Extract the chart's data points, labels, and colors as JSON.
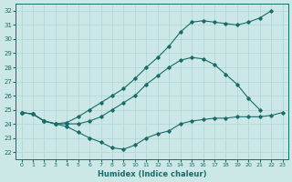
{
  "xlabel": "Humidex (Indice chaleur)",
  "xlim": [
    -0.5,
    23.5
  ],
  "ylim": [
    21.5,
    32.5
  ],
  "xticks": [
    0,
    1,
    2,
    3,
    4,
    5,
    6,
    7,
    8,
    9,
    10,
    11,
    12,
    13,
    14,
    15,
    16,
    17,
    18,
    19,
    20,
    21,
    22,
    23
  ],
  "yticks": [
    22,
    23,
    24,
    25,
    26,
    27,
    28,
    29,
    30,
    31,
    32
  ],
  "bg_color": "#cce8e6",
  "grid_color": "#aed4d2",
  "line_color": "#1a6b6a",
  "series": [
    {
      "x": [
        0,
        1,
        2,
        3,
        4,
        5,
        6,
        7,
        8,
        9,
        10,
        11,
        12,
        13,
        14,
        15,
        16,
        17,
        18,
        19,
        20,
        21,
        22
      ],
      "y": [
        24.8,
        24.7,
        24.2,
        24.0,
        24.1,
        24.5,
        25.0,
        25.5,
        26.0,
        26.5,
        27.2,
        28.0,
        28.7,
        29.5,
        30.5,
        31.2,
        31.3,
        31.2,
        31.1,
        31.0,
        31.2,
        31.5,
        32.0
      ]
    },
    {
      "x": [
        0,
        1,
        2,
        3,
        4,
        5,
        6,
        7,
        8,
        9,
        10,
        11,
        12,
        13,
        14,
        15,
        16,
        17,
        18,
        19,
        20,
        21
      ],
      "y": [
        24.8,
        24.7,
        24.2,
        24.0,
        24.0,
        24.0,
        24.2,
        24.5,
        25.0,
        25.5,
        26.0,
        26.8,
        27.4,
        28.0,
        28.5,
        28.7,
        28.6,
        28.2,
        27.5,
        26.8,
        25.8,
        25.0
      ]
    },
    {
      "x": [
        0,
        1,
        2,
        3,
        4,
        5,
        6,
        7,
        8,
        9,
        10,
        11,
        12,
        13,
        14,
        15,
        16,
        17,
        18,
        19,
        20,
        21,
        22,
        23
      ],
      "y": [
        24.8,
        24.7,
        24.2,
        24.0,
        23.8,
        23.4,
        23.0,
        22.7,
        22.3,
        22.2,
        22.5,
        23.0,
        23.3,
        23.5,
        24.0,
        24.2,
        24.3,
        24.4,
        24.4,
        24.5,
        24.5,
        24.5,
        24.6,
        24.8
      ]
    }
  ]
}
